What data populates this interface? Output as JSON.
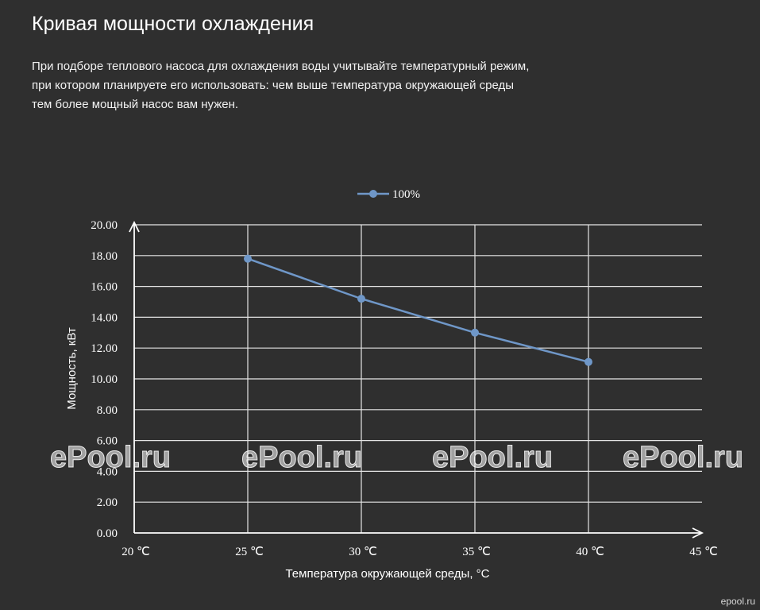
{
  "header": {
    "title": "Кривая мощности охлаждения",
    "description_lines": [
      "При подборе теплового насоса для охлаждения воды учитывайте температурный режим,",
      "при котором планируете его использовать: чем выше температура окружающей среды",
      "тем более мощный насос вам нужен."
    ]
  },
  "chart_data": {
    "type": "line",
    "title": "",
    "xlabel": "Температура окружающей среды, °C",
    "ylabel": "Мощность, кВт",
    "x_ticks": [
      20,
      25,
      30,
      35,
      40,
      45
    ],
    "x_tick_labels": [
      "20 ℃",
      "25 ℃",
      "30 ℃",
      "35 ℃",
      "40 ℃",
      "45 ℃"
    ],
    "y_ticks": [
      0,
      2,
      4,
      6,
      8,
      10,
      12,
      14,
      16,
      18,
      20
    ],
    "y_tick_labels": [
      "0.00",
      "2.00",
      "4.00",
      "6.00",
      "8.00",
      "10.00",
      "12.00",
      "14.00",
      "16.00",
      "18.00",
      "20.00"
    ],
    "xlim": [
      20,
      45
    ],
    "ylim": [
      0,
      20
    ],
    "grid": true,
    "legend_position": "top-center",
    "series": [
      {
        "name": "100%",
        "color": "#6f97c8",
        "x": [
          25,
          30,
          35,
          40
        ],
        "y": [
          17.8,
          15.2,
          13.0,
          11.1
        ]
      }
    ]
  },
  "watermark": {
    "text": "ePool.ru",
    "corner_text": "epool.ru"
  },
  "colors": {
    "background": "#2f2f2f",
    "grid": "#e6e6e6",
    "series": "#6f97c8"
  }
}
